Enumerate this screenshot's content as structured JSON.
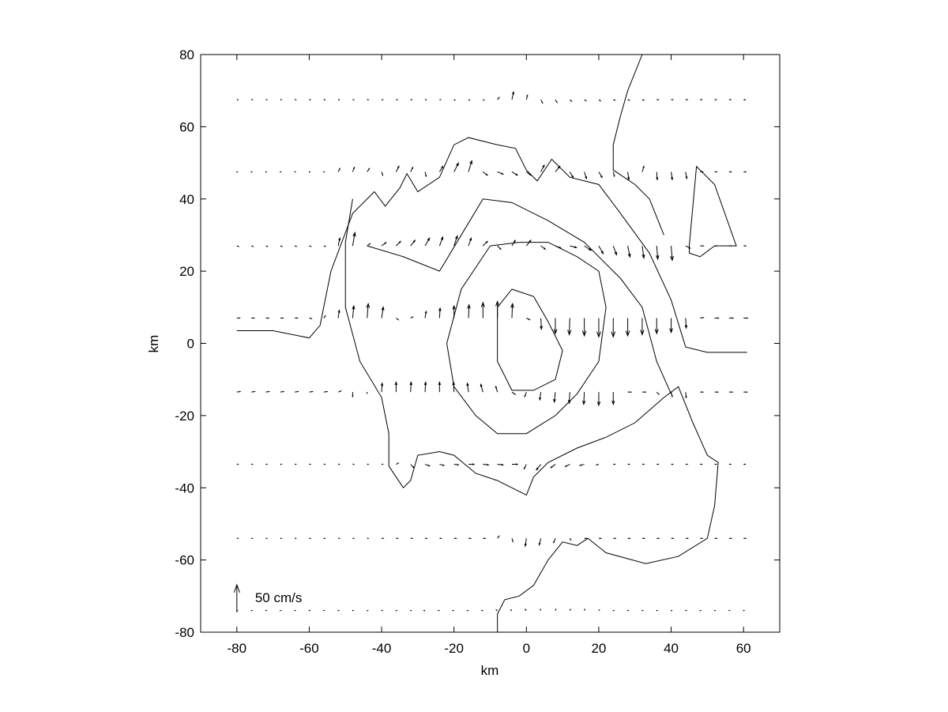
{
  "chart_data": {
    "type": "quiver",
    "xlabel": "km",
    "ylabel": "km",
    "xlim": [
      -90,
      70
    ],
    "ylim": [
      -80,
      80
    ],
    "xticks": [
      -80,
      -60,
      -40,
      -20,
      0,
      20,
      40,
      60
    ],
    "yticks": [
      -80,
      -60,
      -40,
      -20,
      0,
      20,
      40,
      60,
      80
    ],
    "color": "#000000",
    "key": {
      "value": 50,
      "label": "50 cm/s"
    },
    "x": [
      -80,
      -76,
      -72,
      -68,
      -64,
      -60,
      -56,
      -52,
      -48,
      -44,
      -40,
      -36,
      -32,
      -28,
      -24,
      -20,
      -16,
      -12,
      -8,
      -4,
      0,
      4,
      8,
      12,
      16,
      20,
      24,
      28,
      32,
      36,
      40,
      44,
      48,
      52,
      56,
      60
    ],
    "rows": [
      {
        "y": 67.5,
        "u": [
          2,
          2,
          2,
          2,
          2,
          2,
          2,
          2,
          2,
          2,
          2,
          2,
          2,
          2,
          2,
          2,
          2,
          2,
          3,
          3,
          2,
          3,
          3,
          3,
          3,
          3,
          3,
          3,
          3,
          3,
          3,
          3,
          3,
          3,
          3,
          3
        ],
        "v": [
          0,
          0,
          0,
          0,
          0,
          0,
          0,
          0,
          0,
          0,
          0,
          0,
          0,
          0,
          0,
          -1,
          -1,
          -1,
          4,
          14,
          8,
          -6,
          -5,
          -3,
          -2,
          -2,
          -1,
          -1,
          -1,
          0,
          0,
          0,
          0,
          0,
          0,
          0
        ]
      },
      {
        "y": 47.5,
        "u": [
          1,
          1,
          1,
          1,
          1,
          1,
          1,
          3,
          3,
          4,
          2,
          5,
          4,
          2,
          6,
          8,
          6,
          8,
          10,
          10,
          8,
          6,
          8,
          6,
          4,
          6,
          2,
          2,
          3,
          1,
          2,
          2,
          5,
          4,
          4,
          4
        ],
        "v": [
          0,
          0,
          0,
          0,
          0,
          0,
          0,
          6,
          8,
          6,
          -6,
          10,
          8,
          -8,
          10,
          16,
          20,
          -6,
          -4,
          -6,
          -6,
          12,
          10,
          -10,
          -12,
          -10,
          -8,
          -14,
          10,
          -14,
          -14,
          -12,
          0,
          0,
          0,
          0
        ]
      },
      {
        "y": 27,
        "u": [
          3,
          3,
          3,
          3,
          3,
          3,
          3,
          3,
          4,
          5,
          8,
          8,
          8,
          8,
          6,
          6,
          5,
          8,
          6,
          6,
          8,
          8,
          10,
          12,
          12,
          8,
          6,
          4,
          3,
          2,
          2,
          8,
          6,
          4,
          4,
          4
        ],
        "v": [
          -1,
          -1,
          -1,
          -1,
          -1,
          -1,
          -1,
          14,
          24,
          4,
          6,
          8,
          10,
          14,
          16,
          18,
          14,
          8,
          -6,
          10,
          10,
          -6,
          -4,
          -3,
          -8,
          -14,
          -16,
          -20,
          -22,
          -24,
          -26,
          -4,
          0,
          0,
          0,
          0
        ]
      },
      {
        "y": 7,
        "u": [
          5,
          5,
          5,
          5,
          5,
          4,
          3,
          2,
          2,
          2,
          3,
          4,
          4,
          2,
          1,
          0,
          1,
          0,
          0,
          1,
          6,
          1,
          0,
          -1,
          0,
          0,
          0,
          0,
          0,
          0,
          0,
          1,
          6,
          7,
          7,
          7
        ],
        "v": [
          0,
          0,
          0,
          0,
          0,
          -1,
          4,
          14,
          22,
          26,
          20,
          -3,
          2,
          12,
          18,
          22,
          24,
          28,
          30,
          26,
          -3,
          -20,
          -28,
          -30,
          -32,
          -34,
          -34,
          -32,
          -30,
          -28,
          -26,
          -18,
          1,
          0,
          0,
          0
        ]
      },
      {
        "y": -13.5,
        "u": [
          6,
          6,
          6,
          6,
          6,
          6,
          6,
          5,
          0,
          0,
          1,
          0,
          1,
          1,
          0,
          -1,
          -2,
          -4,
          -3,
          6,
          -3,
          -2,
          -2,
          -1,
          -1,
          0,
          0,
          6,
          6,
          4,
          2,
          1,
          5,
          6,
          6,
          6
        ],
        "v": [
          1,
          1,
          1,
          1,
          1,
          1,
          1,
          2,
          -8,
          -2,
          16,
          18,
          18,
          18,
          18,
          18,
          16,
          14,
          10,
          -4,
          -8,
          -14,
          -18,
          -20,
          -22,
          -24,
          -22,
          0,
          0,
          -4,
          -8,
          -10,
          0,
          0,
          0,
          0
        ]
      },
      {
        "y": -33.5,
        "u": [
          2,
          2,
          2,
          2,
          2,
          2,
          2,
          2,
          2,
          2,
          2,
          4,
          6,
          8,
          8,
          8,
          10,
          10,
          10,
          10,
          -4,
          -8,
          -8,
          -8,
          -8,
          -4,
          3,
          3,
          3,
          3,
          3,
          3,
          3,
          3,
          3,
          3
        ],
        "v": [
          0,
          0,
          0,
          0,
          0,
          0,
          0,
          0,
          0,
          0,
          0,
          2,
          -6,
          -3,
          -2,
          -1,
          0,
          -1,
          -1,
          0,
          -8,
          -10,
          -6,
          -4,
          -2,
          -1,
          0,
          0,
          0,
          0,
          0,
          0,
          0,
          0,
          0,
          0
        ]
      },
      {
        "y": -54,
        "u": [
          2,
          2,
          2,
          2,
          2,
          2,
          2,
          2,
          2,
          2,
          3,
          3,
          3,
          3,
          3,
          4,
          4,
          4,
          3,
          2,
          -2,
          -3,
          -3,
          2,
          4,
          4,
          4,
          4,
          4,
          4,
          4,
          4,
          4,
          4,
          4,
          4
        ],
        "v": [
          0,
          0,
          0,
          0,
          0,
          0,
          0,
          0,
          0,
          0,
          0,
          0,
          0,
          0,
          0,
          0,
          0,
          0,
          4,
          -6,
          -14,
          -12,
          -8,
          -3,
          0,
          0,
          0,
          0,
          0,
          0,
          0,
          0,
          0,
          0,
          0,
          0
        ]
      },
      {
        "y": -74,
        "u": [
          1,
          1,
          1,
          1,
          1,
          1,
          1,
          1,
          1,
          1,
          1,
          1,
          1,
          -2,
          -2,
          -2,
          -2,
          -2,
          -2,
          -2,
          -2,
          -1,
          1,
          1,
          1,
          1,
          1,
          1,
          1,
          1,
          1,
          1,
          1,
          1,
          1,
          1
        ],
        "v": [
          0,
          0,
          0,
          0,
          0,
          0,
          0,
          0,
          0,
          0,
          0,
          0,
          0,
          0,
          0,
          0,
          0,
          0,
          1,
          1,
          2,
          2,
          2,
          2,
          2,
          1,
          0,
          0,
          0,
          0,
          0,
          0,
          0,
          0,
          0,
          0
        ]
      }
    ],
    "contours": [
      {
        "x": [
          -80,
          -70,
          -60,
          -57,
          -54,
          -48,
          -42,
          -39,
          -35,
          -33,
          -30,
          -24,
          -20,
          -16,
          -8,
          -3,
          0,
          3,
          7,
          12,
          20,
          26,
          34,
          40,
          44,
          50,
          61
        ],
        "y": [
          3.5,
          3.5,
          1.5,
          5,
          20,
          36,
          42,
          38,
          43,
          47,
          42,
          46,
          55,
          57,
          55,
          54,
          48,
          45,
          51,
          46,
          44,
          36,
          25,
          12,
          -1,
          -2.5,
          -2.5
        ]
      },
      {
        "x": [
          -48,
          -50,
          -50,
          -46,
          -40,
          -38,
          -38,
          -34,
          -32,
          -30,
          -24,
          -20,
          -14,
          -8,
          0,
          2,
          6,
          14,
          22,
          30,
          38,
          42,
          46,
          50,
          53,
          52,
          50,
          42,
          33,
          22,
          17,
          14,
          10,
          6,
          2,
          -2,
          -6,
          -8,
          -8
        ],
        "y": [
          40,
          28,
          10,
          -5,
          -15,
          -25,
          -34,
          -40,
          -38,
          -31,
          -30,
          -31,
          -36,
          -38,
          -42,
          -37,
          -33,
          -29,
          -26,
          -22,
          -15,
          -12,
          -22,
          -31,
          -33,
          -45,
          -54,
          -59,
          -61,
          -58,
          -54,
          -56,
          -55,
          -60,
          -67,
          -70,
          -71,
          -75,
          -80
        ]
      },
      {
        "x": [
          -44,
          -34,
          -24,
          -18,
          -12,
          -4,
          6,
          16,
          26,
          32,
          36,
          40
        ],
        "y": [
          27,
          24,
          20,
          30,
          40,
          39,
          34,
          28,
          18,
          10,
          -5,
          -14
        ]
      },
      {
        "x": [
          -10,
          -18,
          -22,
          -20,
          -14,
          -8,
          0,
          8,
          14,
          20,
          22,
          20,
          14,
          6,
          -2,
          -10
        ],
        "y": [
          27,
          15,
          0,
          -12,
          -20,
          -25,
          -25,
          -20,
          -14,
          -5,
          10,
          20,
          24,
          28,
          28,
          27
        ]
      },
      {
        "x": [
          -8,
          -4,
          2,
          6,
          10,
          8,
          2,
          -4,
          -8,
          -8
        ],
        "y": [
          10,
          15,
          13,
          6,
          -2,
          -10,
          -13,
          -13,
          -5,
          10
        ]
      },
      {
        "x": [
          32,
          28,
          26,
          24,
          24,
          30,
          34,
          38
        ],
        "y": [
          80,
          70,
          63,
          55,
          48,
          44,
          40,
          30
        ]
      },
      {
        "x": [
          45,
          47,
          52,
          58,
          52,
          48,
          45,
          45
        ],
        "y": [
          27,
          49,
          44,
          27,
          27,
          24,
          25,
          27
        ]
      }
    ]
  }
}
